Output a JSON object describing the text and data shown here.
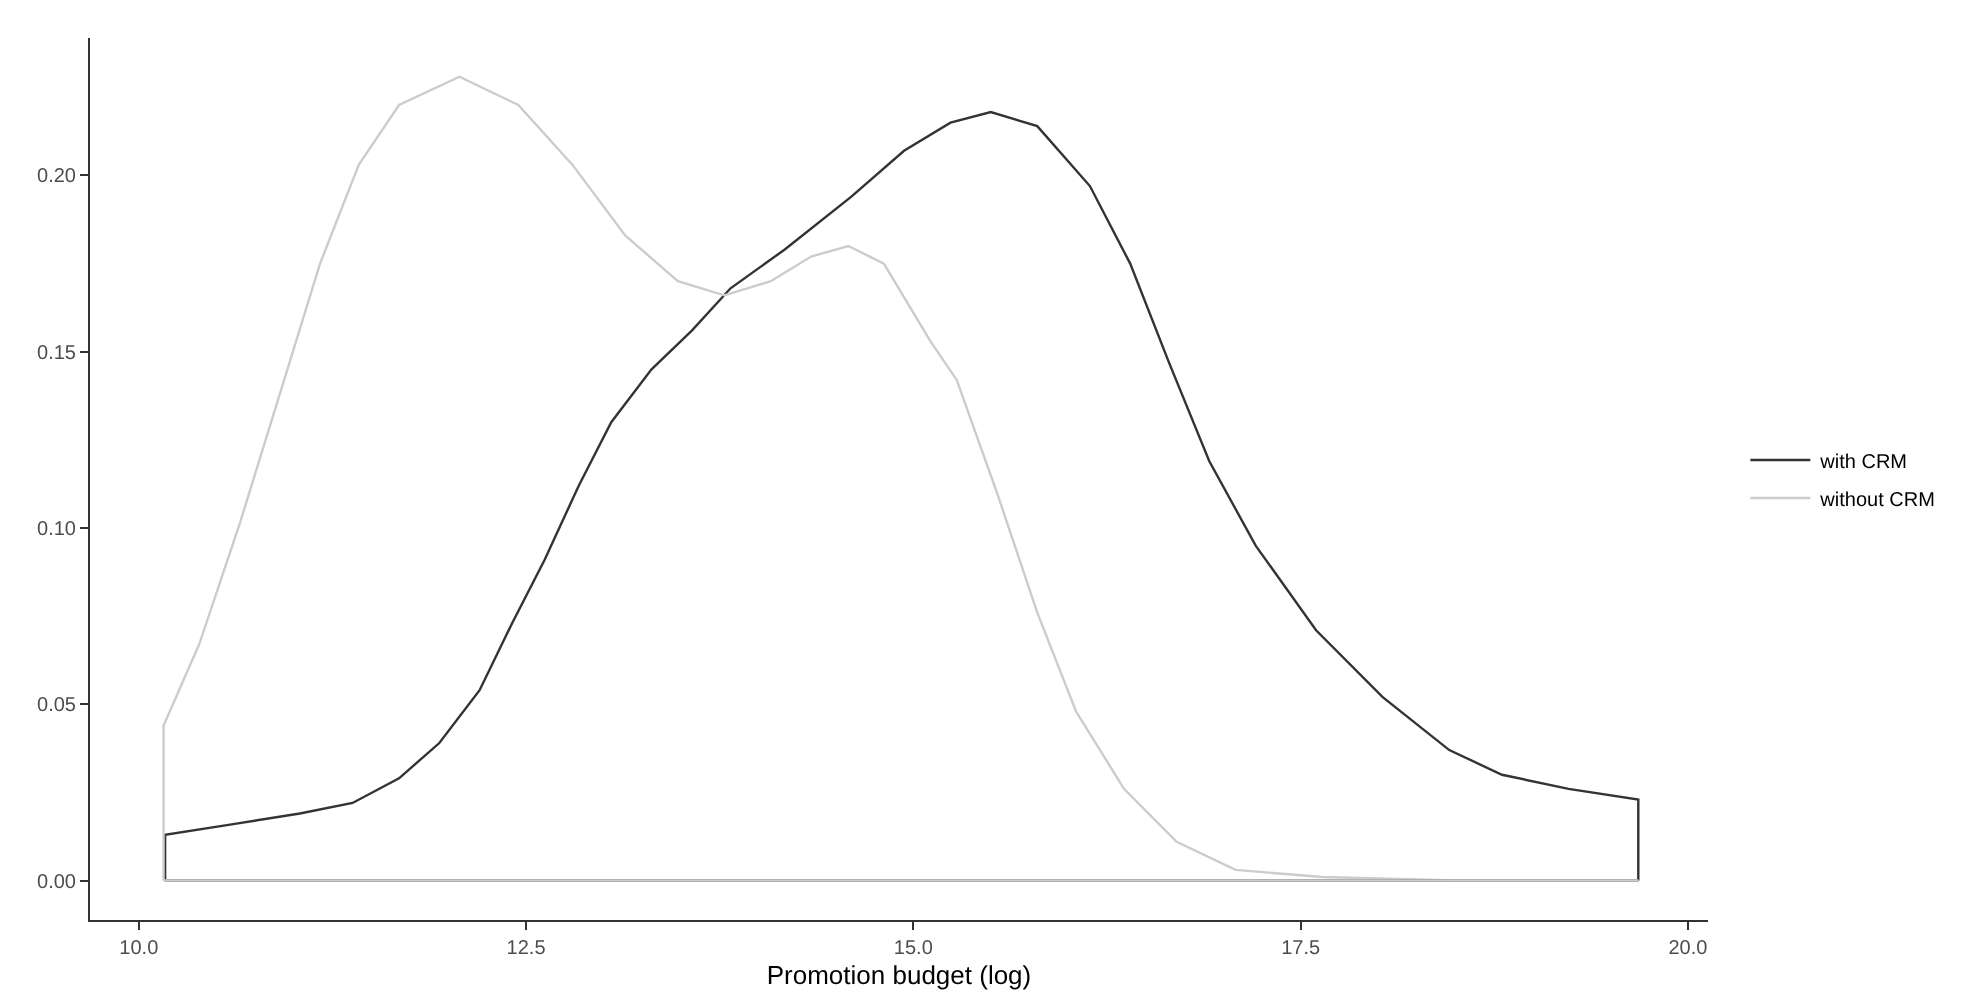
{
  "chart_data": {
    "type": "line",
    "xlabel": "Promotion budget (log)",
    "xlim": [
      9.685,
      20.13
    ],
    "ylim": [
      -0.0112,
      0.239
    ],
    "xticks": [
      {
        "value": 10,
        "label": "10.0"
      },
      12.5,
      {
        "value": 15,
        "label": "15.0"
      },
      17.5,
      {
        "value": 20,
        "label": "20.0"
      }
    ],
    "yticks": [
      {
        "value": 0,
        "label": "0.00"
      },
      0.05,
      {
        "value": 0.1,
        "label": "0.10"
      },
      0.15,
      {
        "value": 0.2,
        "label": "0.20"
      }
    ],
    "grid": false,
    "legend": "right",
    "series": [
      {
        "name": "with CRM",
        "color": "#333333",
        "x": [
          10.17,
          10.17,
          10.61,
          11.04,
          11.38,
          11.68,
          11.94,
          12.2,
          12.41,
          12.62,
          12.84,
          13.05,
          13.31,
          13.57,
          13.82,
          14.17,
          14.6,
          14.94,
          15.24,
          15.5,
          15.8,
          16.14,
          16.4,
          16.65,
          16.91,
          17.21,
          17.6,
          18.03,
          18.46,
          18.8,
          19.23,
          19.68,
          19.68
        ],
        "values": [
          0,
          0.013,
          0.016,
          0.019,
          0.022,
          0.029,
          0.039,
          0.054,
          0.073,
          0.091,
          0.112,
          0.13,
          0.145,
          0.156,
          0.168,
          0.179,
          0.194,
          0.207,
          0.215,
          0.218,
          0.214,
          0.197,
          0.175,
          0.147,
          0.119,
          0.095,
          0.071,
          0.052,
          0.037,
          0.03,
          0.026,
          0.023,
          0
        ]
      },
      {
        "name": "without CRM",
        "color": "#cccccc",
        "x": [
          10.16,
          10.16,
          10.39,
          10.65,
          10.91,
          11.17,
          11.42,
          11.68,
          12.07,
          12.45,
          12.8,
          13.14,
          13.48,
          13.78,
          14.08,
          14.34,
          14.58,
          14.81,
          15.11,
          15.28,
          15.54,
          15.8,
          16.05,
          16.36,
          16.7,
          17.08,
          17.64,
          18.5,
          19.68
        ],
        "values": [
          0,
          0.044,
          0.067,
          0.101,
          0.138,
          0.175,
          0.203,
          0.22,
          0.228,
          0.22,
          0.203,
          0.183,
          0.17,
          0.166,
          0.17,
          0.177,
          0.18,
          0.175,
          0.153,
          0.142,
          0.11,
          0.076,
          0.048,
          0.026,
          0.011,
          0.003,
          0.001,
          0,
          0
        ]
      }
    ]
  }
}
